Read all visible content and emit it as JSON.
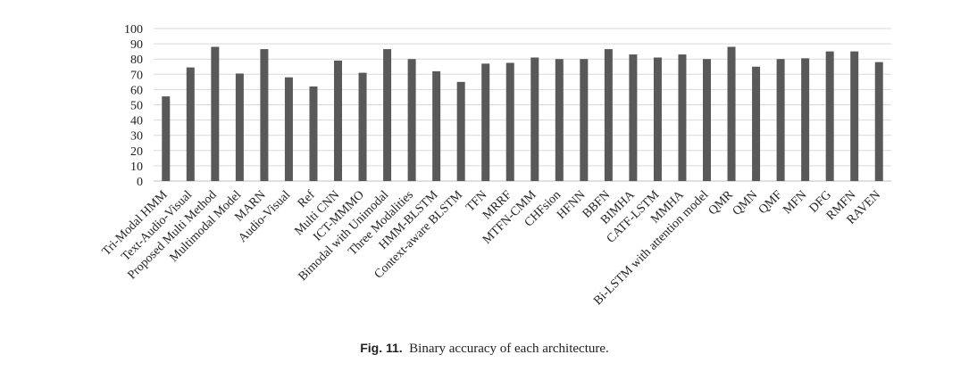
{
  "figure": {
    "label": "Fig. 11.",
    "text": "Binary accuracy of each architecture."
  },
  "chart_data": {
    "type": "bar",
    "ylim": [
      0,
      100
    ],
    "yticks": [
      0,
      10,
      20,
      30,
      40,
      50,
      60,
      70,
      80,
      90,
      100
    ],
    "grid": true,
    "bar_color": "#595959",
    "categories": [
      "Tri-Modal HMM",
      "Text-Audio-Visual",
      "Proposed Multi Method",
      "Multimodal Model",
      "MARN",
      "Audio-Visual",
      "Ref",
      "Multi CNN",
      "ICT-MMMO",
      "Bimodal with Unimodal",
      "Three Modalities",
      "HMM-BLSTM",
      "Context-aware BLSTM",
      "TFN",
      "MRRF",
      "MTFN-CMM",
      "CHFsion",
      "HFNN",
      "BBFN",
      "BIMHA",
      "CATF-LSTM",
      "MMHA",
      "Bi-LSTM with attention model",
      "QMR",
      "QMN",
      "QMF",
      "MFN",
      "DFG",
      "RMFN",
      "RAVEN"
    ],
    "values": [
      55.5,
      74.5,
      88,
      70.5,
      86.5,
      68,
      62,
      79,
      71,
      86.5,
      80,
      72,
      65,
      77,
      77.5,
      81,
      80,
      80,
      86.5,
      83,
      81,
      83,
      80,
      88,
      75,
      80,
      80.5,
      85,
      85,
      78
    ]
  }
}
